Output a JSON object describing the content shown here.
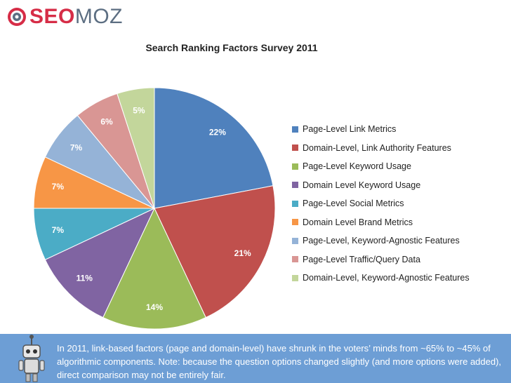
{
  "brand": {
    "logo_text_seo": "SEO",
    "logo_text_moz": "MOZ",
    "icon": "gear-logo-icon"
  },
  "chart_data": {
    "type": "pie",
    "title": "Search Ranking Factors Survey 2011",
    "categories": [
      "Page-Level Link Metrics",
      "Domain-Level, Link Authority Features",
      "Page-Level Keyword Usage",
      "Domain Level Keyword Usage",
      "Page-Level Social Metrics",
      "Domain Level Brand Metrics",
      "Page-Level, Keyword-Agnostic Features",
      "Page-Level Traffic/Query Data",
      "Domain-Level, Keyword-Agnostic Features"
    ],
    "values": [
      22,
      21,
      14,
      11,
      7,
      7,
      7,
      6,
      5
    ],
    "value_labels": [
      "22%",
      "21%",
      "14%",
      "11%",
      "7%",
      "7%",
      "7%",
      "6%",
      "5%"
    ],
    "colors": [
      "#4f81bd",
      "#c0504d",
      "#9bbb59",
      "#8064a2",
      "#4bacc6",
      "#f79646",
      "#95b3d7",
      "#d99694",
      "#c3d69b"
    ],
    "legend": "right",
    "start": "12 o'clock, clockwise"
  },
  "footer": {
    "text": "In 2011, link-based factors (page and domain-level) have shrunk in the voters’ minds from ~65% to ~45% of algorithmic components. Note: because the question options changed slightly (and more options were added), direct comparison may not be entirely fair.",
    "icon": "robot-mascot-icon"
  }
}
